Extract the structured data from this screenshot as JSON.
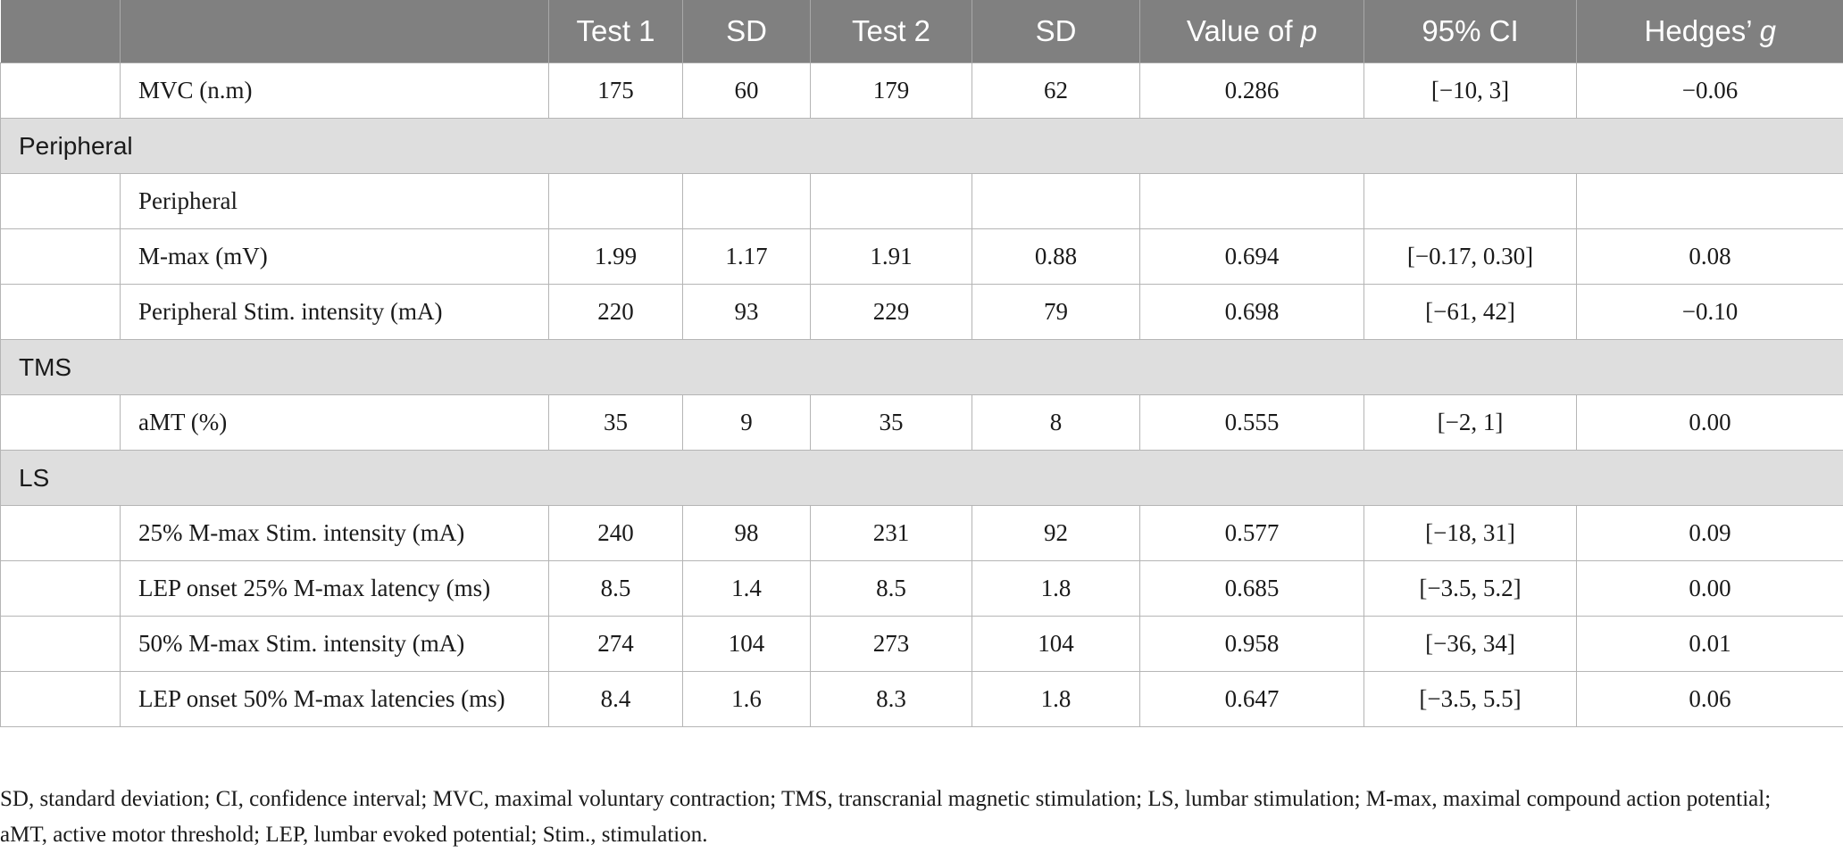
{
  "header": {
    "cols": [
      "",
      "",
      "Test 1",
      "SD",
      "Test 2",
      "SD",
      "Value of ",
      "95% CI",
      "Hedges’ "
    ],
    "col6_italic": "p",
    "col8_italic": "g"
  },
  "rows": [
    {
      "type": "data",
      "label": "MVC (n.m)",
      "test1": "175",
      "sd1": "60",
      "test2": "179",
      "sd2": "62",
      "p": "0.286",
      "ci": "[−10, 3]",
      "g": "−0.06"
    },
    {
      "type": "section",
      "label": "Peripheral"
    },
    {
      "type": "data",
      "label": "Peripheral",
      "test1": "",
      "sd1": "",
      "test2": "",
      "sd2": "",
      "p": "",
      "ci": "",
      "g": ""
    },
    {
      "type": "data",
      "label": "M-max (mV)",
      "test1": "1.99",
      "sd1": "1.17",
      "test2": "1.91",
      "sd2": "0.88",
      "p": "0.694",
      "ci": "[−0.17, 0.30]",
      "g": "0.08"
    },
    {
      "type": "data",
      "label": "Peripheral Stim. intensity (mA)",
      "test1": "220",
      "sd1": "93",
      "test2": "229",
      "sd2": "79",
      "p": "0.698",
      "ci": "[−61, 42]",
      "g": "−0.10"
    },
    {
      "type": "section",
      "label": "TMS"
    },
    {
      "type": "data",
      "label": "aMT (%)",
      "test1": "35",
      "sd1": "9",
      "test2": "35",
      "sd2": "8",
      "p": "0.555",
      "ci": "[−2, 1]",
      "g": "0.00"
    },
    {
      "type": "section",
      "label": "LS"
    },
    {
      "type": "data",
      "label": "25% M-max Stim. intensity (mA)",
      "test1": "240",
      "sd1": "98",
      "test2": "231",
      "sd2": "92",
      "p": "0.577",
      "ci": "[−18, 31]",
      "g": "0.09"
    },
    {
      "type": "data",
      "label": "LEP onset 25% M-max latency (ms)",
      "test1": "8.5",
      "sd1": "1.4",
      "test2": "8.5",
      "sd2": "1.8",
      "p": "0.685",
      "ci": "[−3.5, 5.2]",
      "g": "0.00"
    },
    {
      "type": "data",
      "label": "50% M-max Stim. intensity (mA)",
      "test1": "274",
      "sd1": "104",
      "test2": "273",
      "sd2": "104",
      "p": "0.958",
      "ci": "[−36, 34]",
      "g": "0.01"
    },
    {
      "type": "data",
      "label": "LEP onset 50% M-max latencies (ms)",
      "test1": "8.4",
      "sd1": "1.6",
      "test2": "8.3",
      "sd2": "1.8",
      "p": "0.647",
      "ci": "[−3.5, 5.5]",
      "g": "0.06"
    }
  ],
  "footnote": "SD, standard deviation; CI, confidence interval; MVC, maximal voluntary contraction; TMS, transcranial magnetic stimulation; LS, lumbar stimulation; M-max, maximal compound action potential; aMT, active motor threshold; LEP, lumbar evoked potential; Stim., stimulation."
}
